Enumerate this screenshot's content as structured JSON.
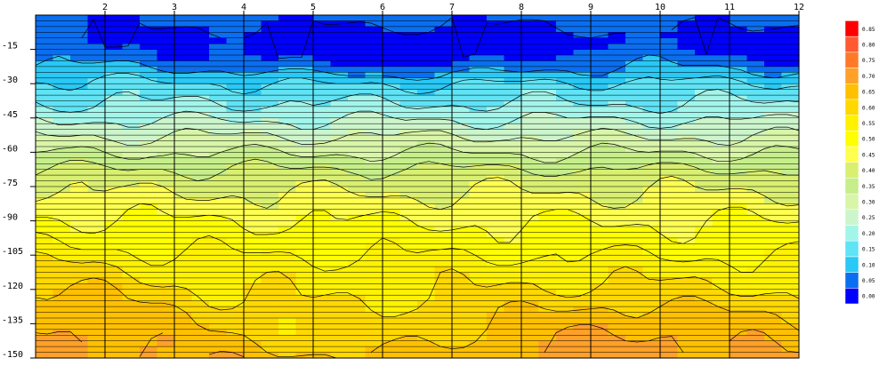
{
  "chart_data": {
    "type": "heatmap",
    "title": "",
    "xlabel": "",
    "ylabel": "",
    "x": [
      1,
      2,
      3,
      4,
      5,
      6,
      7,
      8,
      9,
      10,
      11,
      12
    ],
    "x_tick_labels": [
      "2",
      "3",
      "4",
      "5",
      "6",
      "7",
      "8",
      "9",
      "10",
      "11",
      "12"
    ],
    "xlim": [
      1,
      12
    ],
    "y_tick_labels": [
      "-15",
      "-30",
      "-45",
      "-60",
      "-75",
      "-90",
      "-105",
      "-120",
      "-135",
      "-150"
    ],
    "ylim": [
      -150,
      0
    ],
    "grid": "vertical lines at each x tick; horizontal lines every 2.5",
    "colorbar": {
      "position": "right",
      "levels": [
        "0.00",
        "0.05",
        "0.10",
        "0.15",
        "0.20",
        "0.25",
        "0.30",
        "0.35",
        "0.40",
        "0.45",
        "0.50",
        "0.55",
        "0.60",
        "0.65",
        "0.70",
        "0.75",
        "0.80",
        "0.85"
      ],
      "colors": [
        "#0000ff",
        "#0a6ef0",
        "#29c8f5",
        "#5fe3f5",
        "#a3f5ea",
        "#ccf5cc",
        "#d8f5a8",
        "#c6ee8a",
        "#d8ef70",
        "#ffff50",
        "#ffff00",
        "#fff200",
        "#ffd800",
        "#ffc000",
        "#ffa028",
        "#ff7a28",
        "#ff5a32",
        "#ff0000"
      ]
    },
    "profile_depths": [
      0,
      -10,
      -20,
      -30,
      -40,
      -50,
      -60,
      -70,
      -80,
      -90,
      -100,
      -110,
      -120,
      -130,
      -140,
      -150
    ],
    "profile_values": [
      0.07,
      0.04,
      0.09,
      0.16,
      0.21,
      0.28,
      0.35,
      0.42,
      0.46,
      0.5,
      0.53,
      0.57,
      0.6,
      0.64,
      0.67,
      0.7
    ]
  }
}
